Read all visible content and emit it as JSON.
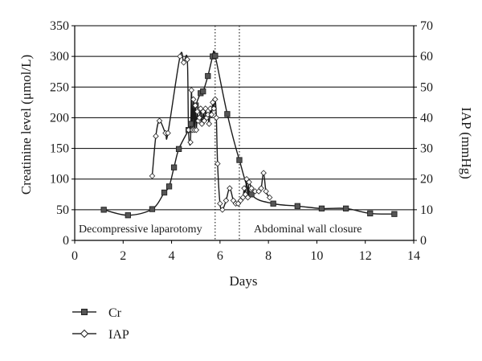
{
  "chart_data": {
    "type": "line",
    "xlabel": "Days",
    "ylabel_left": "Creatinine level (μmol/L)",
    "ylabel_right": "IAP (mmHg)",
    "xlim": [
      0,
      14
    ],
    "ylim_left": [
      0,
      350
    ],
    "ylim_right": [
      0,
      70
    ],
    "x_ticks": [
      0,
      2,
      4,
      6,
      8,
      10,
      12,
      14
    ],
    "y_left_ticks": [
      0,
      50,
      100,
      150,
      200,
      250,
      300,
      350
    ],
    "y_right_ticks": [
      0,
      10,
      20,
      30,
      40,
      50,
      60,
      70
    ],
    "grid": "horizontal",
    "legend_position": "bottom-left",
    "annotations": [
      {
        "text": "Decompressive laparotomy",
        "x": 5.8
      },
      {
        "text": "Abdominal wall closure",
        "x": 6.8
      }
    ],
    "series": [
      {
        "name": "Cr",
        "axis": "left",
        "marker": "square",
        "x": [
          1.2,
          2.2,
          3.2,
          3.7,
          3.9,
          4.1,
          4.3,
          4.7,
          4.8,
          5.0,
          5.2,
          5.3,
          5.5,
          5.7,
          5.8,
          6.3,
          6.8,
          7.3,
          8.2,
          9.2,
          10.2,
          11.2,
          12.2,
          13.2
        ],
        "values": [
          50,
          41,
          51,
          78,
          88,
          119,
          149,
          180,
          190,
          220,
          240,
          243,
          268,
          300,
          301,
          206,
          131,
          75,
          60,
          56,
          52,
          52,
          44,
          43
        ]
      },
      {
        "name": "IAP",
        "axis": "right",
        "marker": "diamond",
        "x": [
          3.2,
          3.35,
          3.5,
          3.75,
          3.85,
          4.35,
          4.5,
          4.65,
          4.7,
          4.78,
          4.82,
          4.86,
          4.9,
          4.94,
          4.98,
          5.02,
          5.06,
          5.1,
          5.15,
          5.2,
          5.25,
          5.3,
          5.35,
          5.4,
          5.45,
          5.5,
          5.55,
          5.6,
          5.65,
          5.7,
          5.75,
          5.8,
          5.85,
          5.9,
          6.0,
          6.1,
          6.25,
          6.4,
          6.55,
          6.65,
          6.75,
          6.85,
          6.95,
          7.0,
          7.05,
          7.1,
          7.15,
          7.2,
          7.3,
          7.45,
          7.6,
          7.7,
          7.8,
          7.9,
          8.05
        ],
        "values": [
          21,
          34,
          39,
          35,
          35,
          60,
          58,
          59,
          36,
          32,
          49,
          36,
          46,
          36,
          44,
          36,
          42,
          39,
          40,
          43,
          38,
          42,
          39,
          43,
          40,
          41,
          38,
          43,
          41,
          45,
          43,
          46,
          40,
          25,
          12,
          10,
          13,
          17,
          13,
          12,
          12,
          13,
          14,
          17,
          15,
          20,
          14,
          19,
          17,
          16,
          16,
          17,
          22,
          16,
          14
        ]
      }
    ]
  }
}
